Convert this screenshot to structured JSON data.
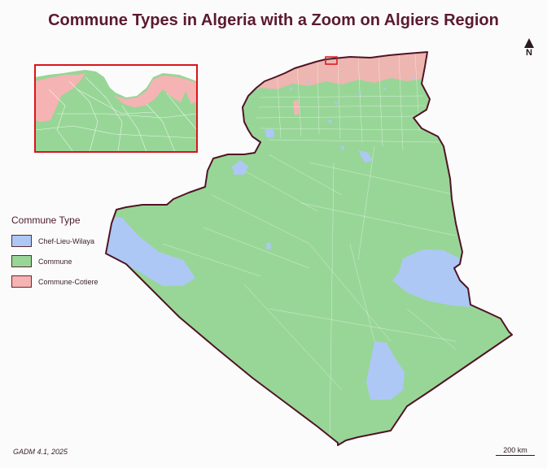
{
  "title": "Commune Types in Algeria with a Zoom on Algiers Region",
  "legend": {
    "title": "Commune Type",
    "items": [
      {
        "label": "Chef-Lieu-Wilaya",
        "color": "#adc8f5"
      },
      {
        "label": "Commune",
        "color": "#98d697"
      },
      {
        "label": "Commune-Cotiere",
        "color": "#f6b3b3"
      }
    ]
  },
  "north_label": "N",
  "source": "GADM 4.1, 2025",
  "scale_label": "200 km",
  "colors": {
    "border": "#4f1425",
    "zoom_box": "#d9141c",
    "title": "#5a1a30",
    "background": "#fcfbfb"
  }
}
